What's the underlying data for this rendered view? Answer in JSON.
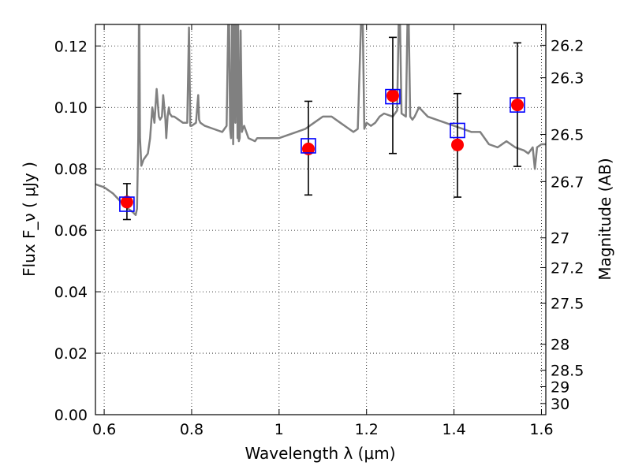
{
  "chart_data": {
    "type": "scatter",
    "xlabel": "Wavelength  λ (μm)",
    "ylabel": "Flux  F_ν  ( μJy )",
    "ylabel_right": "Magnitude (AB)",
    "xlim": [
      0.58,
      1.61
    ],
    "ylim": [
      0.0,
      0.127
    ],
    "grid": true,
    "x_ticks": [
      {
        "value": 0.6,
        "label": "0.6"
      },
      {
        "value": 0.8,
        "label": "0.8"
      },
      {
        "value": 1.0,
        "label": "1"
      },
      {
        "value": 1.2,
        "label": "1.2"
      },
      {
        "value": 1.4,
        "label": "1.4"
      },
      {
        "value": 1.6,
        "label": "1.6"
      }
    ],
    "y_ticks": [
      {
        "value": 0.0,
        "label": "0.00"
      },
      {
        "value": 0.02,
        "label": "0.02"
      },
      {
        "value": 0.04,
        "label": "0.04"
      },
      {
        "value": 0.06,
        "label": "0.06"
      },
      {
        "value": 0.08,
        "label": "0.08"
      },
      {
        "value": 0.1,
        "label": "0.10"
      },
      {
        "value": 0.12,
        "label": "0.12"
      }
    ],
    "right_ticks": [
      {
        "mag": 26.2,
        "label": "26.2"
      },
      {
        "mag": 26.3,
        "label": "26.3"
      },
      {
        "mag": 26.5,
        "label": "26.5"
      },
      {
        "mag": 26.7,
        "label": "26.7"
      },
      {
        "mag": 27.0,
        "label": "27"
      },
      {
        "mag": 27.2,
        "label": "27.2"
      },
      {
        "mag": 27.5,
        "label": "27.5"
      },
      {
        "mag": 28.0,
        "label": "28"
      },
      {
        "mag": 28.5,
        "label": "28.5"
      },
      {
        "mag": 29.0,
        "label": "29"
      },
      {
        "mag": 30.0,
        "label": "30"
      }
    ],
    "series": [
      {
        "kind": "observed",
        "marker": "red-circle",
        "color": "#ff0000",
        "points": [
          {
            "x": 0.652,
            "y": 0.0692,
            "yerr_low": 0.0057,
            "yerr_high": 0.006
          },
          {
            "x": 1.067,
            "y": 0.0865,
            "yerr_low": 0.015,
            "yerr_high": 0.0155
          },
          {
            "x": 1.26,
            "y": 0.1038,
            "yerr_low": 0.0188,
            "yerr_high": 0.019
          },
          {
            "x": 1.408,
            "y": 0.0878,
            "yerr_low": 0.017,
            "yerr_high": 0.0167
          },
          {
            "x": 1.545,
            "y": 0.1008,
            "yerr_low": 0.02,
            "yerr_high": 0.0202
          }
        ]
      },
      {
        "kind": "model-synthetic",
        "marker": "blue-open-square",
        "color": "#0000ff",
        "points": [
          {
            "x": 0.652,
            "y": 0.0685
          },
          {
            "x": 1.067,
            "y": 0.0875
          },
          {
            "x": 1.26,
            "y": 0.1035
          },
          {
            "x": 1.408,
            "y": 0.0925
          },
          {
            "x": 1.545,
            "y": 0.1008
          }
        ]
      },
      {
        "kind": "model-spectrum",
        "line": true,
        "color": "#808080",
        "x": [
          0.58,
          0.6,
          0.62,
          0.64,
          0.655,
          0.665,
          0.672,
          0.675,
          0.678,
          0.68,
          0.682,
          0.685,
          0.69,
          0.7,
          0.705,
          0.71,
          0.715,
          0.72,
          0.725,
          0.728,
          0.732,
          0.735,
          0.74,
          0.742,
          0.745,
          0.748,
          0.75,
          0.755,
          0.76,
          0.78,
          0.79,
          0.794,
          0.797,
          0.8,
          0.81,
          0.815,
          0.817,
          0.82,
          0.83,
          0.85,
          0.87,
          0.88,
          0.885,
          0.888,
          0.89,
          0.893,
          0.895,
          0.898,
          0.9,
          0.902,
          0.905,
          0.906,
          0.908,
          0.91,
          0.912,
          0.915,
          0.917,
          0.92,
          0.93,
          0.945,
          0.95,
          0.96,
          0.98,
          1.0,
          1.02,
          1.04,
          1.06,
          1.08,
          1.1,
          1.12,
          1.14,
          1.15,
          1.16,
          1.17,
          1.18,
          1.19,
          1.195,
          1.2,
          1.21,
          1.22,
          1.23,
          1.24,
          1.26,
          1.27,
          1.275,
          1.28,
          1.29,
          1.295,
          1.3,
          1.305,
          1.31,
          1.32,
          1.34,
          1.36,
          1.38,
          1.4,
          1.42,
          1.44,
          1.46,
          1.48,
          1.5,
          1.52,
          1.54,
          1.56,
          1.57,
          1.58,
          1.585,
          1.59,
          1.6,
          1.61
        ],
        "y": [
          0.075,
          0.074,
          0.072,
          0.069,
          0.067,
          0.066,
          0.065,
          0.067,
          0.09,
          0.14,
          0.09,
          0.081,
          0.083,
          0.085,
          0.09,
          0.1,
          0.095,
          0.106,
          0.097,
          0.096,
          0.097,
          0.104,
          0.096,
          0.09,
          0.097,
          0.1,
          0.098,
          0.097,
          0.097,
          0.095,
          0.095,
          0.126,
          0.094,
          0.094,
          0.095,
          0.104,
          0.096,
          0.095,
          0.094,
          0.093,
          0.092,
          0.094,
          0.14,
          0.093,
          0.09,
          0.14,
          0.088,
          0.14,
          0.095,
          0.14,
          0.09,
          0.14,
          0.089,
          0.09,
          0.125,
          0.092,
          0.093,
          0.094,
          0.09,
          0.089,
          0.09,
          0.09,
          0.09,
          0.09,
          0.091,
          0.092,
          0.093,
          0.095,
          0.097,
          0.097,
          0.095,
          0.094,
          0.093,
          0.092,
          0.093,
          0.14,
          0.093,
          0.095,
          0.094,
          0.095,
          0.097,
          0.098,
          0.097,
          0.099,
          0.14,
          0.098,
          0.097,
          0.14,
          0.097,
          0.096,
          0.097,
          0.1,
          0.097,
          0.096,
          0.095,
          0.094,
          0.093,
          0.092,
          0.092,
          0.088,
          0.087,
          0.089,
          0.087,
          0.086,
          0.085,
          0.087,
          0.08,
          0.087,
          0.088,
          0.088
        ]
      }
    ]
  }
}
